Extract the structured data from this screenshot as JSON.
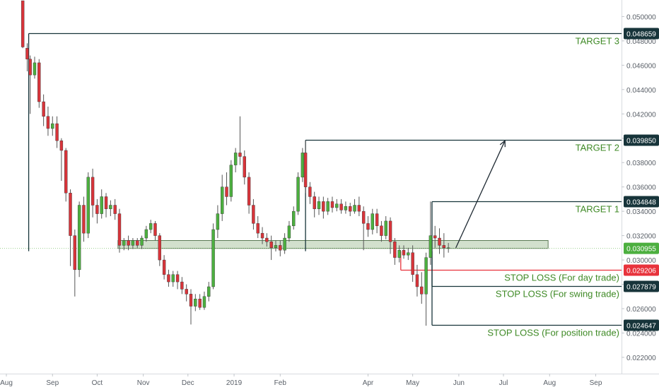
{
  "chart_data": {
    "type": "candlestick",
    "ylim": [
      0.0213,
      0.0513
    ],
    "xlim": [
      "2018-08-01",
      "2019-09-15"
    ],
    "grid": false,
    "y_ticks": [
      0.022,
      0.024,
      0.026,
      0.028,
      0.03,
      0.032,
      0.034,
      0.036,
      0.038,
      0.04,
      0.042,
      0.044,
      0.046,
      0.048,
      0.05
    ],
    "y_tick_labels": [
      "0.022000",
      "0.024000",
      "0.026000",
      "0.028000",
      "0.030000",
      "0.032000",
      "0.034000",
      "0.036000",
      "0.038000",
      "0.040000",
      "0.042000",
      "0.044000",
      "0.046000",
      "0.048000",
      "0.050000"
    ],
    "x_ticks": [
      {
        "date": "2018-08-01",
        "label": "Aug"
      },
      {
        "date": "2018-09-01",
        "label": "Sep"
      },
      {
        "date": "2018-10-01",
        "label": "Oct"
      },
      {
        "date": "2018-11-01",
        "label": "Nov"
      },
      {
        "date": "2018-12-01",
        "label": "Dec"
      },
      {
        "date": "2019-01-01",
        "label": "2019"
      },
      {
        "date": "2019-02-01",
        "label": "Feb"
      },
      {
        "date": "2019-04-01",
        "label": "Apr"
      },
      {
        "date": "2019-05-01",
        "label": "May"
      },
      {
        "date": "2019-06-01",
        "label": "Jun"
      },
      {
        "date": "2019-07-01",
        "label": "Jul"
      },
      {
        "date": "2019-08-01",
        "label": "Aug"
      },
      {
        "date": "2019-09-01",
        "label": "Sep"
      }
    ],
    "colors": {
      "up": "#4caf3f",
      "down": "#d8343a",
      "wick": "#555555",
      "dark_line": "#17343a",
      "red_line": "#e8333c",
      "green_label": "#3f8a26",
      "zone_fill": "#c7d8c0",
      "zone_stroke": "#5c7a55",
      "axis_text": "#5a6068"
    },
    "levels": [
      {
        "name": "TARGET 3",
        "value": 0.048659,
        "label": "0.048659",
        "kind": "target",
        "start": "2018-08-16"
      },
      {
        "name": "TARGET 2",
        "value": 0.03985,
        "label": "0.039850",
        "kind": "target",
        "start": "2019-02-18"
      },
      {
        "name": "TARGET 1",
        "value": 0.034848,
        "label": "0.034848",
        "kind": "target",
        "start": "2019-05-14"
      },
      {
        "name": "STOP LOSS (For day trade)",
        "value": 0.029206,
        "label": "0.029206",
        "kind": "stop-day",
        "start": "2019-04-23"
      },
      {
        "name": "STOP LOSS (For swing trade)",
        "value": 0.027879,
        "label": "0.027879",
        "kind": "stop",
        "start": "2019-05-14"
      },
      {
        "name": "STOP LOSS (For position trade)",
        "value": 0.024647,
        "label": "0.024647",
        "kind": "stop",
        "start": "2019-05-14"
      }
    ],
    "current_price": {
      "value": 0.030955,
      "label": "0.030955"
    },
    "support_zone": {
      "x_start": "2018-10-15",
      "x_end": "2019-07-31",
      "y_low": 0.03095,
      "y_high": 0.0316
    },
    "arrow": {
      "from": {
        "date": "2019-05-30",
        "value": 0.031
      },
      "to": {
        "date": "2019-07-02",
        "value": 0.0398
      }
    },
    "candles": [
      [
        "2018-08-12",
        0.0513,
        0.0475,
        0.0513,
        0.0474
      ],
      [
        "2018-08-15",
        0.0474,
        0.0465,
        0.0478,
        0.0455
      ],
      [
        "2018-08-17",
        0.0465,
        0.0452,
        0.0468,
        0.042
      ],
      [
        "2018-08-20",
        0.0452,
        0.0462,
        0.0467,
        0.0449
      ],
      [
        "2018-08-23",
        0.0462,
        0.043,
        0.0465,
        0.0425
      ],
      [
        "2018-08-26",
        0.043,
        0.0418,
        0.0436,
        0.041
      ],
      [
        "2018-08-29",
        0.0418,
        0.0408,
        0.0426,
        0.0402
      ],
      [
        "2018-09-01",
        0.0408,
        0.0412,
        0.0418,
        0.0402
      ],
      [
        "2018-09-04",
        0.0412,
        0.0398,
        0.0418,
        0.0392
      ],
      [
        "2018-09-07",
        0.0398,
        0.039,
        0.04,
        0.0365
      ],
      [
        "2018-09-10",
        0.039,
        0.0355,
        0.0392,
        0.0348
      ],
      [
        "2018-09-13",
        0.0355,
        0.032,
        0.0358,
        0.0295
      ],
      [
        "2018-09-16",
        0.032,
        0.0292,
        0.0325,
        0.027
      ],
      [
        "2018-09-19",
        0.0292,
        0.0345,
        0.0348,
        0.0286
      ],
      [
        "2018-09-22",
        0.0345,
        0.0322,
        0.0352,
        0.0315
      ],
      [
        "2018-09-25",
        0.0322,
        0.0368,
        0.0372,
        0.0318
      ],
      [
        "2018-09-28",
        0.0368,
        0.0345,
        0.0375,
        0.0335
      ],
      [
        "2018-10-01",
        0.0345,
        0.0338,
        0.035,
        0.033
      ],
      [
        "2018-10-04",
        0.0338,
        0.0352,
        0.0358,
        0.0334
      ],
      [
        "2018-10-07",
        0.0352,
        0.0342,
        0.0355,
        0.0335
      ],
      [
        "2018-10-10",
        0.0342,
        0.0345,
        0.0349,
        0.0336
      ],
      [
        "2018-10-13",
        0.0345,
        0.0338,
        0.035,
        0.0333
      ],
      [
        "2018-10-16",
        0.0338,
        0.0312,
        0.0342,
        0.0306
      ],
      [
        "2018-10-19",
        0.0312,
        0.0316,
        0.0318,
        0.0308
      ],
      [
        "2018-10-22",
        0.0316,
        0.0312,
        0.032,
        0.0308
      ],
      [
        "2018-10-25",
        0.0312,
        0.0316,
        0.0318,
        0.0309
      ],
      [
        "2018-10-28",
        0.0316,
        0.0312,
        0.0318,
        0.031
      ],
      [
        "2018-10-31",
        0.0312,
        0.0318,
        0.032,
        0.0309
      ],
      [
        "2018-11-03",
        0.0318,
        0.0325,
        0.0328,
        0.0315
      ],
      [
        "2018-11-06",
        0.0325,
        0.033,
        0.0333,
        0.0322
      ],
      [
        "2018-11-09",
        0.033,
        0.032,
        0.0332,
        0.0316
      ],
      [
        "2018-11-12",
        0.032,
        0.03,
        0.0322,
        0.0295
      ],
      [
        "2018-11-15",
        0.03,
        0.0288,
        0.0304,
        0.0284
      ],
      [
        "2018-11-18",
        0.0288,
        0.0282,
        0.0292,
        0.0278
      ],
      [
        "2018-11-21",
        0.0282,
        0.0288,
        0.0291,
        0.0278
      ],
      [
        "2018-11-24",
        0.0288,
        0.0282,
        0.0291,
        0.0276
      ],
      [
        "2018-11-27",
        0.0282,
        0.0276,
        0.0286,
        0.0272
      ],
      [
        "2018-11-30",
        0.0276,
        0.0272,
        0.028,
        0.0266
      ],
      [
        "2018-12-03",
        0.0272,
        0.0262,
        0.0276,
        0.0247
      ],
      [
        "2018-12-06",
        0.0262,
        0.0268,
        0.0272,
        0.0258
      ],
      [
        "2018-12-09",
        0.0268,
        0.0261,
        0.0272,
        0.0259
      ],
      [
        "2018-12-12",
        0.0261,
        0.027,
        0.0274,
        0.0259
      ],
      [
        "2018-12-15",
        0.027,
        0.0278,
        0.0282,
        0.0266
      ],
      [
        "2018-12-18",
        0.0278,
        0.0325,
        0.033,
        0.0276
      ],
      [
        "2018-12-21",
        0.0325,
        0.0338,
        0.0345,
        0.0318
      ],
      [
        "2018-12-24",
        0.0338,
        0.036,
        0.037,
        0.0332
      ],
      [
        "2018-12-27",
        0.036,
        0.0352,
        0.0372,
        0.0345
      ],
      [
        "2018-12-30",
        0.0352,
        0.0378,
        0.0382,
        0.0348
      ],
      [
        "2019-01-02",
        0.0378,
        0.0388,
        0.0392,
        0.0372
      ],
      [
        "2019-01-05",
        0.0388,
        0.0385,
        0.0418,
        0.0378
      ],
      [
        "2019-01-08",
        0.0385,
        0.0368,
        0.039,
        0.0362
      ],
      [
        "2019-01-11",
        0.0368,
        0.0345,
        0.0372,
        0.0338
      ],
      [
        "2019-01-14",
        0.0345,
        0.033,
        0.035,
        0.0325
      ],
      [
        "2019-01-17",
        0.033,
        0.0322,
        0.0336,
        0.0318
      ],
      [
        "2019-01-20",
        0.0322,
        0.0318,
        0.0327,
        0.0313
      ],
      [
        "2019-01-23",
        0.0318,
        0.0315,
        0.0322,
        0.0311
      ],
      [
        "2019-01-26",
        0.0315,
        0.031,
        0.032,
        0.03
      ],
      [
        "2019-01-29",
        0.031,
        0.0312,
        0.0316,
        0.0307
      ],
      [
        "2019-02-01",
        0.0312,
        0.0308,
        0.0316,
        0.0303
      ],
      [
        "2019-02-04",
        0.0308,
        0.0318,
        0.0322,
        0.0305
      ],
      [
        "2019-02-07",
        0.0318,
        0.0328,
        0.0332,
        0.0315
      ],
      [
        "2019-02-10",
        0.0328,
        0.034,
        0.0344,
        0.0325
      ],
      [
        "2019-02-13",
        0.034,
        0.0368,
        0.0372,
        0.0337
      ],
      [
        "2019-02-16",
        0.0368,
        0.0388,
        0.0392,
        0.0364
      ],
      [
        "2019-02-18",
        0.0388,
        0.036,
        0.0398,
        0.0355
      ],
      [
        "2019-02-21",
        0.036,
        0.0352,
        0.0364,
        0.0346
      ],
      [
        "2019-02-24",
        0.0352,
        0.0342,
        0.0356,
        0.0335
      ],
      [
        "2019-02-27",
        0.0342,
        0.0348,
        0.0352,
        0.0337
      ],
      [
        "2019-03-02",
        0.0348,
        0.034,
        0.0352,
        0.0334
      ],
      [
        "2019-03-05",
        0.034,
        0.0348,
        0.0351,
        0.0337
      ],
      [
        "2019-03-08",
        0.0348,
        0.0343,
        0.0352,
        0.0339
      ],
      [
        "2019-03-11",
        0.0343,
        0.0346,
        0.035,
        0.034
      ],
      [
        "2019-03-14",
        0.0346,
        0.0341,
        0.035,
        0.0338
      ],
      [
        "2019-03-17",
        0.0341,
        0.0344,
        0.0348,
        0.0338
      ],
      [
        "2019-03-20",
        0.0344,
        0.034,
        0.0347,
        0.0336
      ],
      [
        "2019-03-23",
        0.034,
        0.0345,
        0.035,
        0.0338
      ],
      [
        "2019-03-26",
        0.0345,
        0.034,
        0.0352,
        0.0336
      ],
      [
        "2019-03-29",
        0.034,
        0.033,
        0.0344,
        0.0308
      ],
      [
        "2019-04-01",
        0.033,
        0.0325,
        0.0336,
        0.0319
      ],
      [
        "2019-04-04",
        0.0325,
        0.0338,
        0.0342,
        0.0321
      ],
      [
        "2019-04-07",
        0.0338,
        0.0328,
        0.0342,
        0.0322
      ],
      [
        "2019-04-10",
        0.0328,
        0.032,
        0.0332,
        0.0315
      ],
      [
        "2019-04-13",
        0.032,
        0.0332,
        0.0336,
        0.0317
      ],
      [
        "2019-04-16",
        0.0332,
        0.0315,
        0.0335,
        0.0305
      ],
      [
        "2019-04-19",
        0.0315,
        0.0302,
        0.0318,
        0.0296
      ],
      [
        "2019-04-22",
        0.0302,
        0.0308,
        0.0312,
        0.0298
      ],
      [
        "2019-04-25",
        0.0308,
        0.0304,
        0.0312,
        0.0301
      ],
      [
        "2019-04-28",
        0.0304,
        0.0306,
        0.031,
        0.03
      ],
      [
        "2019-05-01",
        0.0306,
        0.0288,
        0.0312,
        0.0282
      ],
      [
        "2019-05-04",
        0.0288,
        0.0278,
        0.0296,
        0.027
      ],
      [
        "2019-05-07",
        0.0278,
        0.0272,
        0.029,
        0.0264
      ],
      [
        "2019-05-10",
        0.0272,
        0.0302,
        0.0306,
        0.0246
      ],
      [
        "2019-05-13",
        0.0302,
        0.032,
        0.0348,
        0.0296
      ],
      [
        "2019-05-16",
        0.032,
        0.0318,
        0.0328,
        0.031
      ],
      [
        "2019-05-19",
        0.0318,
        0.0312,
        0.0326,
        0.0305
      ],
      [
        "2019-05-22",
        0.0312,
        0.031,
        0.0322,
        0.0302
      ],
      [
        "2019-05-25",
        0.031,
        0.031,
        0.0314,
        0.0306
      ]
    ]
  }
}
